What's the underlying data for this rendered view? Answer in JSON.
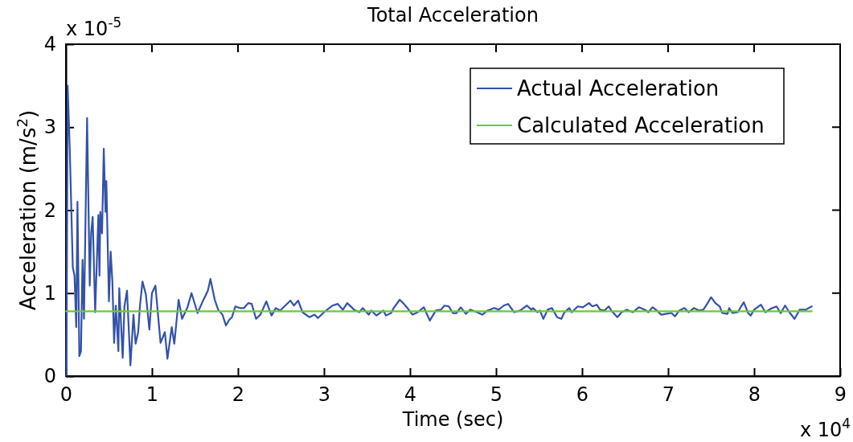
{
  "chart_data": {
    "type": "line",
    "title": "Total Acceleration",
    "xlabel": "Time (sec)",
    "ylabel": "Acceleration (m/s$^{2}$)",
    "xlim": [
      0,
      9
    ],
    "xticks": [
      0,
      1,
      2,
      3,
      4,
      5,
      6,
      7,
      8,
      9
    ],
    "ylim": [
      0,
      4
    ],
    "yticks": [
      0,
      1,
      2,
      3,
      4
    ],
    "annotations": [
      "x 10$^{-5}$",
      "x 10$^{4}$"
    ],
    "legend": "top right",
    "grid": false,
    "marker": "none",
    "line_style": "solid",
    "series": [
      {
        "name": "Actual Acceleration",
        "color": "#3352a8",
        "x": [
          0.006,
          0.02,
          0.044,
          0.08,
          0.1,
          0.12,
          0.134,
          0.156,
          0.175,
          0.193,
          0.21,
          0.246,
          0.277,
          0.293,
          0.311,
          0.34,
          0.377,
          0.39,
          0.4,
          0.42,
          0.44,
          0.46,
          0.47,
          0.5,
          0.52,
          0.54,
          0.56,
          0.58,
          0.61,
          0.62,
          0.66,
          0.68,
          0.71,
          0.75,
          0.785,
          0.81,
          0.84,
          0.86,
          0.89,
          0.93,
          0.97,
          1.0,
          1.04,
          1.1,
          1.15,
          1.18,
          1.23,
          1.26,
          1.31,
          1.35,
          1.41,
          1.46,
          1.53,
          1.59,
          1.65,
          1.68,
          1.73,
          1.77,
          1.82,
          1.86,
          1.9,
          1.93,
          1.97,
          2.02,
          2.07,
          2.12,
          2.16,
          2.21,
          2.26,
          2.33,
          2.39,
          2.44,
          2.49,
          2.54,
          2.61,
          2.65,
          2.7,
          2.75,
          2.83,
          2.89,
          2.93,
          3.0,
          3.1,
          3.16,
          3.22,
          3.27,
          3.35,
          3.41,
          3.45,
          3.52,
          3.55,
          3.61,
          3.69,
          3.72,
          3.78,
          3.81,
          3.88,
          3.92,
          3.97,
          4.03,
          4.09,
          4.16,
          4.19,
          4.23,
          4.3,
          4.36,
          4.4,
          4.45,
          4.5,
          4.54,
          4.59,
          4.65,
          4.7,
          4.78,
          4.84,
          4.9,
          4.98,
          5.03,
          5.09,
          5.14,
          5.21,
          5.28,
          5.36,
          5.41,
          5.43,
          5.48,
          5.51,
          5.55,
          5.6,
          5.65,
          5.71,
          5.76,
          5.79,
          5.85,
          5.88,
          5.95,
          6.01,
          6.08,
          6.12,
          6.17,
          6.21,
          6.26,
          6.31,
          6.34,
          6.41,
          6.46,
          6.52,
          6.59,
          6.66,
          6.73,
          6.77,
          6.82,
          6.87,
          6.92,
          6.97,
          7.04,
          7.08,
          7.13,
          7.19,
          7.24,
          7.3,
          7.36,
          7.41,
          7.46,
          7.5,
          7.55,
          7.6,
          7.63,
          7.69,
          7.71,
          7.75,
          7.81,
          7.85,
          7.88,
          7.93,
          7.96,
          8.0,
          8.08,
          8.13,
          8.19,
          8.26,
          8.31,
          8.36,
          8.41,
          8.47,
          8.53,
          8.6,
          8.67
        ],
        "values": [
          0.01,
          3.5,
          2.76,
          1.31,
          1.21,
          0.59,
          2.1,
          0.24,
          0.3,
          1.4,
          0.69,
          3.11,
          1.09,
          1.72,
          1.92,
          0.77,
          1.94,
          1.21,
          1.98,
          1.72,
          2.74,
          1.98,
          2.35,
          0.9,
          1.5,
          1.14,
          0.4,
          0.85,
          0.3,
          1.06,
          0.22,
          0.84,
          1.03,
          0.13,
          0.74,
          0.39,
          0.53,
          0.84,
          1.14,
          0.98,
          0.56,
          1.0,
          1.09,
          0.4,
          0.53,
          0.21,
          0.59,
          0.39,
          0.92,
          0.69,
          0.82,
          1.0,
          0.76,
          0.9,
          1.03,
          1.17,
          0.92,
          0.8,
          0.74,
          0.61,
          0.68,
          0.71,
          0.84,
          0.82,
          0.82,
          0.88,
          0.87,
          0.69,
          0.74,
          0.9,
          0.73,
          0.82,
          0.79,
          0.84,
          0.91,
          0.85,
          0.91,
          0.77,
          0.71,
          0.74,
          0.7,
          0.77,
          0.85,
          0.87,
          0.8,
          0.88,
          0.8,
          0.77,
          0.82,
          0.74,
          0.79,
          0.73,
          0.79,
          0.73,
          0.76,
          0.82,
          0.92,
          0.88,
          0.82,
          0.74,
          0.77,
          0.83,
          0.76,
          0.67,
          0.79,
          0.8,
          0.85,
          0.84,
          0.76,
          0.76,
          0.83,
          0.75,
          0.8,
          0.77,
          0.74,
          0.79,
          0.82,
          0.8,
          0.85,
          0.87,
          0.77,
          0.79,
          0.85,
          0.8,
          0.82,
          0.77,
          0.79,
          0.69,
          0.8,
          0.82,
          0.71,
          0.69,
          0.76,
          0.82,
          0.77,
          0.84,
          0.83,
          0.88,
          0.84,
          0.86,
          0.8,
          0.79,
          0.84,
          0.79,
          0.71,
          0.77,
          0.8,
          0.77,
          0.83,
          0.8,
          0.77,
          0.83,
          0.79,
          0.74,
          0.75,
          0.76,
          0.72,
          0.79,
          0.82,
          0.77,
          0.82,
          0.79,
          0.8,
          0.88,
          0.95,
          0.88,
          0.84,
          0.76,
          0.75,
          0.82,
          0.76,
          0.77,
          0.84,
          0.89,
          0.76,
          0.73,
          0.8,
          0.86,
          0.77,
          0.81,
          0.84,
          0.76,
          0.85,
          0.77,
          0.69,
          0.8,
          0.8,
          0.84
        ]
      },
      {
        "name": "Calculated Acceleration",
        "color": "#66cc33",
        "x": [
          0,
          8.67
        ],
        "values": [
          0.78,
          0.78
        ]
      }
    ]
  }
}
